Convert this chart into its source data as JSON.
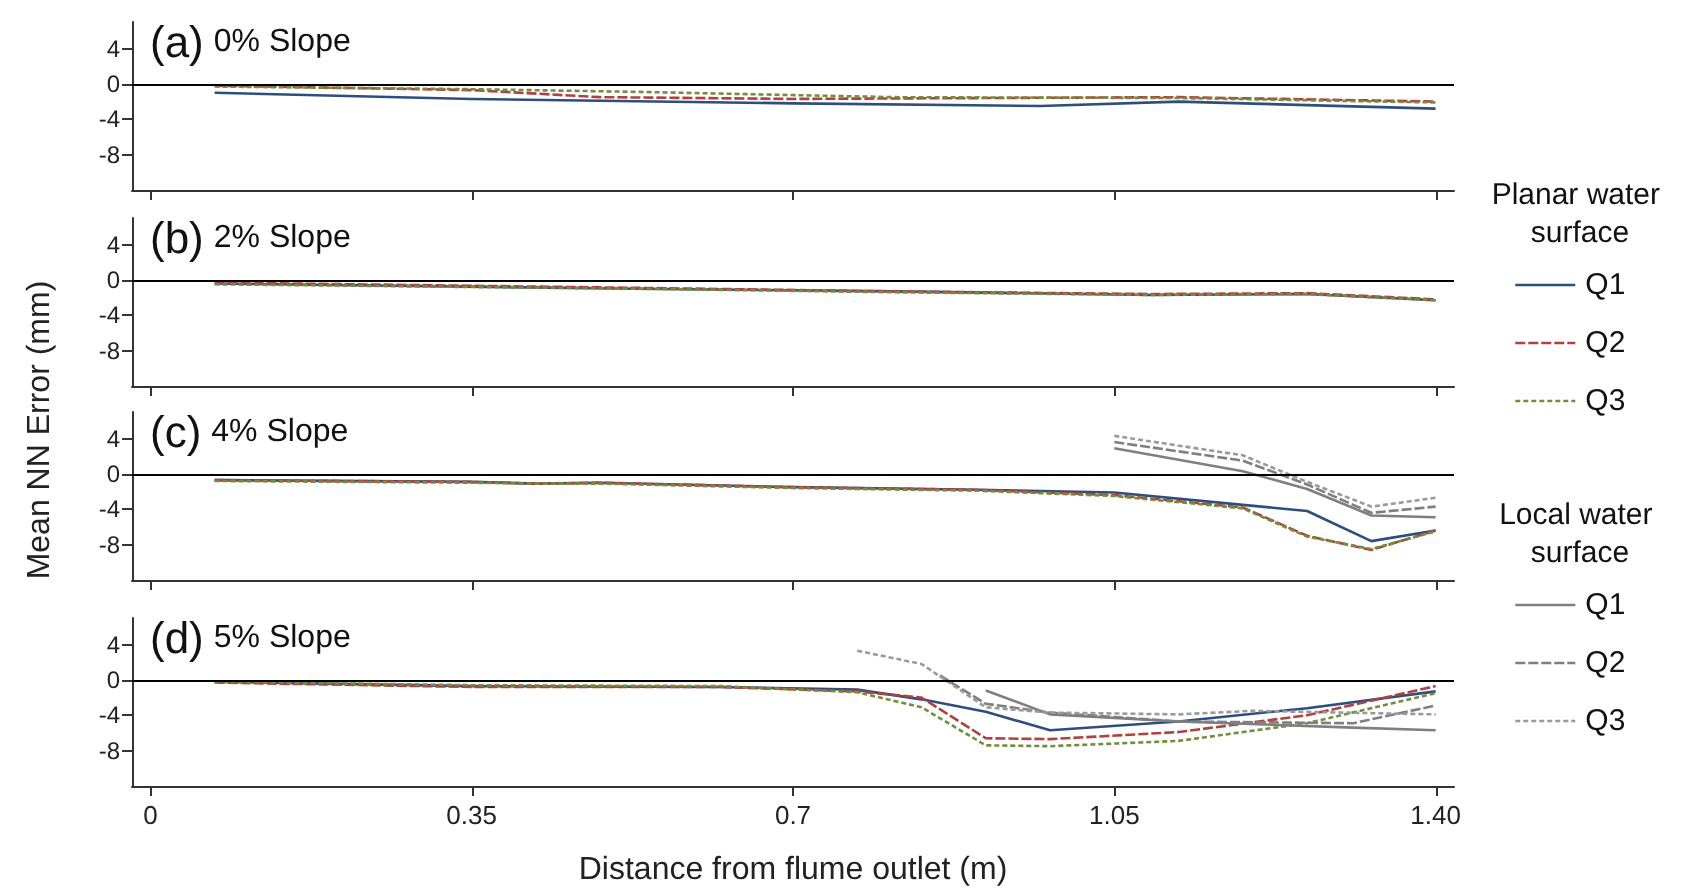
{
  "chart_data": [
    {
      "type": "line",
      "title": "(a) 0% Slope",
      "xlim": [
        -0.02,
        1.42
      ],
      "xticks": [
        {
          "value": 0,
          "label": null
        },
        {
          "value": 0.35,
          "label": null
        },
        {
          "value": 0.7,
          "label": null
        },
        {
          "value": 1.05,
          "label": null
        },
        {
          "value": 1.4,
          "label": null
        }
      ],
      "ylim": [
        -12,
        7
      ],
      "yticks": [
        4,
        0,
        -4,
        -8
      ],
      "tick_labels": "y",
      "grid": false,
      "marker": "none",
      "ref_lines": [
        {
          "axis": "y",
          "value": 0,
          "color": "#000000"
        }
      ],
      "series": [
        {
          "color": "#2e4e7e",
          "line_style": "solid",
          "x": [
            0.07,
            0.35,
            0.7,
            0.97,
            1.12,
            1.4
          ],
          "values": [
            -1.0,
            -1.7,
            -2.2,
            -2.5,
            -2.0,
            -2.8
          ]
        },
        {
          "color": "#b0413e",
          "line_style": "dashed",
          "x": [
            0.07,
            0.35,
            0.49,
            0.7,
            1.12,
            1.4
          ],
          "values": [
            -0.2,
            -0.7,
            -1.5,
            -1.7,
            -1.5,
            -2.0
          ]
        },
        {
          "color": "#6f8f3c",
          "line_style": "dotted",
          "x": [
            0.07,
            0.35,
            0.53,
            0.81,
            1.12,
            1.4
          ],
          "values": [
            -0.3,
            -0.6,
            -0.9,
            -1.5,
            -1.6,
            -2.1
          ]
        }
      ]
    },
    {
      "type": "line",
      "title": "(b) 2% Slope",
      "xlim": [
        -0.02,
        1.42
      ],
      "xticks": [
        {
          "value": 0,
          "label": null
        },
        {
          "value": 0.35,
          "label": null
        },
        {
          "value": 0.7,
          "label": null
        },
        {
          "value": 1.05,
          "label": null
        },
        {
          "value": 1.4,
          "label": null
        }
      ],
      "ylim": [
        -12,
        7
      ],
      "yticks": [
        4,
        0,
        -4,
        -8
      ],
      "tick_labels": "y",
      "grid": false,
      "marker": "none",
      "ref_lines": [
        {
          "axis": "y",
          "value": 0,
          "color": "#000000"
        }
      ],
      "series": [
        {
          "color": "#2e4e7e",
          "line_style": "solid",
          "x": [
            0.07,
            0.53,
            0.81,
            1.09,
            1.26,
            1.4
          ],
          "values": [
            -0.4,
            -1.0,
            -1.3,
            -1.7,
            -1.6,
            -2.3
          ]
        },
        {
          "color": "#b0413e",
          "line_style": "dashed",
          "x": [
            0.07,
            0.53,
            0.81,
            1.09,
            1.26,
            1.4
          ],
          "values": [
            -0.3,
            -0.9,
            -1.3,
            -1.6,
            -1.5,
            -2.2
          ]
        },
        {
          "color": "#6f8f3c",
          "line_style": "dotted",
          "x": [
            0.07,
            0.53,
            0.81,
            1.09,
            1.26,
            1.4
          ],
          "values": [
            -0.5,
            -1.0,
            -1.4,
            -1.7,
            -1.6,
            -2.3
          ]
        }
      ]
    },
    {
      "type": "line",
      "title": "(c) 4% Slope",
      "xlim": [
        -0.02,
        1.42
      ],
      "xticks": [
        {
          "value": 0,
          "label": null
        },
        {
          "value": 0.35,
          "label": null
        },
        {
          "value": 0.7,
          "label": null
        },
        {
          "value": 1.05,
          "label": null
        },
        {
          "value": 1.4,
          "label": null
        }
      ],
      "ylim": [
        -12,
        7
      ],
      "yticks": [
        4,
        0,
        -4,
        -8
      ],
      "tick_labels": "y",
      "grid": false,
      "marker": "none",
      "ref_lines": [
        {
          "axis": "y",
          "value": 0,
          "color": "#000000"
        }
      ],
      "series": [
        {
          "color": "#2e4e7e",
          "line_style": "solid",
          "x": [
            0.07,
            0.35,
            0.42,
            0.49,
            0.7,
            0.9,
            1.05,
            1.19,
            1.26,
            1.33,
            1.4
          ],
          "values": [
            -0.7,
            -0.9,
            -1.1,
            -1.0,
            -1.5,
            -1.8,
            -2.1,
            -3.5,
            -4.2,
            -7.6,
            -6.4
          ]
        },
        {
          "color": "#b0413e",
          "line_style": "dashed",
          "x": [
            0.07,
            0.35,
            0.42,
            0.49,
            0.7,
            0.9,
            1.05,
            1.19,
            1.26,
            1.33,
            1.4
          ],
          "values": [
            -0.7,
            -0.9,
            -1.1,
            -1.0,
            -1.5,
            -1.8,
            -2.4,
            -3.8,
            -7.0,
            -8.6,
            -6.4
          ]
        },
        {
          "color": "#6f8f3c",
          "line_style": "dotted",
          "x": [
            0.07,
            0.35,
            0.42,
            0.49,
            0.7,
            0.9,
            1.05,
            1.19,
            1.26,
            1.33,
            1.4
          ],
          "values": [
            -0.8,
            -1.0,
            -1.1,
            -1.1,
            -1.6,
            -1.9,
            -2.5,
            -3.9,
            -7.1,
            -8.5,
            -6.5
          ]
        },
        {
          "color": "#7f7f7f",
          "line_style": "solid",
          "x": [
            1.05,
            1.19,
            1.26,
            1.33,
            1.4
          ],
          "values": [
            2.9,
            0.3,
            -1.7,
            -4.7,
            -4.9
          ]
        },
        {
          "color": "#7f7f7f",
          "line_style": "dashed",
          "x": [
            1.05,
            1.19,
            1.26,
            1.33,
            1.4
          ],
          "values": [
            3.6,
            1.5,
            -1.2,
            -4.4,
            -3.7
          ]
        },
        {
          "color": "#9a9a9a",
          "line_style": "dotted",
          "x": [
            1.05,
            1.19,
            1.26,
            1.33,
            1.4
          ],
          "values": [
            4.3,
            2.1,
            -0.9,
            -3.7,
            -2.7
          ]
        }
      ]
    },
    {
      "type": "line",
      "title": "(d) 5% Slope",
      "xlabel": "Distance from flume outlet (m)",
      "ylabel": "Mean NN Error (mm)",
      "legend": "right",
      "legend_title": [
        "Planar water surface",
        "Local water surface"
      ],
      "xlim": [
        -0.02,
        1.42
      ],
      "xticks": [
        0,
        0.35,
        0.7,
        1.05,
        {
          "value": 1.4,
          "label": "1.40"
        }
      ],
      "ylim": [
        -12,
        7
      ],
      "yticks": [
        4,
        0,
        -4,
        -8
      ],
      "grid": false,
      "marker": "none",
      "ref_lines": [
        {
          "axis": "y",
          "value": 0,
          "color": "#000000"
        }
      ],
      "series": [
        {
          "name": "Q1",
          "color": "#2e4e7e",
          "line_style": "solid",
          "x": [
            0.07,
            0.35,
            0.62,
            0.77,
            0.84,
            0.91,
            0.98,
            1.12,
            1.26,
            1.4
          ],
          "values": [
            -0.2,
            -0.7,
            -0.8,
            -1.1,
            -2.2,
            -3.6,
            -5.7,
            -4.7,
            -3.2,
            -1.3
          ]
        },
        {
          "name": "Q2",
          "color": "#b0413e",
          "line_style": "dashed",
          "x": [
            0.07,
            0.35,
            0.62,
            0.77,
            0.84,
            0.91,
            0.98,
            1.12,
            1.26,
            1.4
          ],
          "values": [
            -0.3,
            -0.8,
            -0.8,
            -1.3,
            -2.0,
            -6.6,
            -6.7,
            -5.9,
            -4.0,
            -0.7
          ]
        },
        {
          "name": "Q3",
          "color": "#6f8f3c",
          "line_style": "dotted",
          "x": [
            0.07,
            0.35,
            0.62,
            0.77,
            0.84,
            0.91,
            0.98,
            1.12,
            1.26,
            1.4
          ],
          "values": [
            -0.2,
            -0.6,
            -0.7,
            -1.4,
            -3.1,
            -7.4,
            -7.5,
            -6.9,
            -4.9,
            -1.5
          ]
        },
        {
          "name": "Q1",
          "color": "#7f7f7f",
          "line_style": "solid",
          "x": [
            0.91,
            0.98,
            1.12,
            1.31,
            1.4
          ],
          "values": [
            -1.2,
            -3.9,
            -4.7,
            -5.4,
            -5.7
          ]
        },
        {
          "name": "Q2",
          "color": "#7f7f7f",
          "line_style": "dashed",
          "x": [
            0.86,
            0.91,
            0.98,
            1.12,
            1.31,
            1.4
          ],
          "values": [
            0.5,
            -2.7,
            -3.7,
            -4.7,
            -4.9,
            -2.9
          ]
        },
        {
          "name": "Q3",
          "color": "#9a9a9a",
          "line_style": "dotted",
          "x": [
            0.77,
            0.84,
            0.91,
            0.98,
            1.12,
            1.2,
            1.4
          ],
          "values": [
            3.3,
            1.8,
            -3.1,
            -3.7,
            -3.9,
            -3.5,
            -3.9
          ]
        }
      ]
    }
  ]
}
